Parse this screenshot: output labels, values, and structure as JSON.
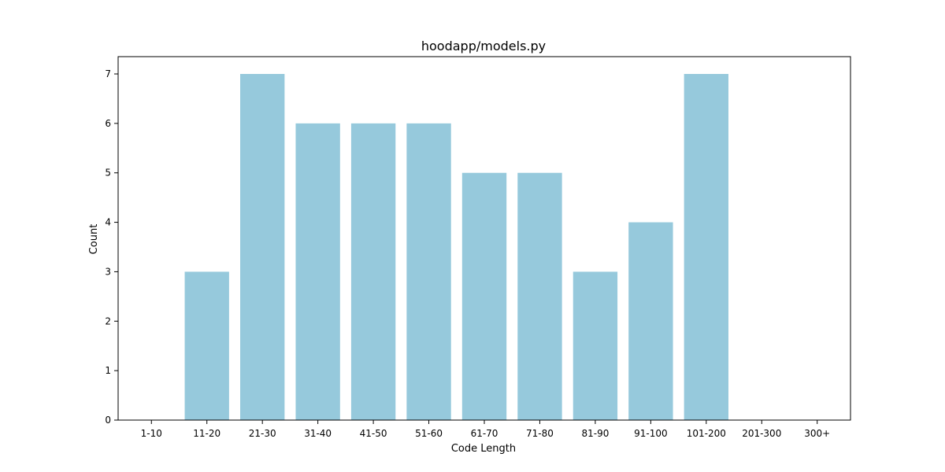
{
  "chart_data": {
    "type": "bar",
    "title": "hoodapp/models.py",
    "xlabel": "Code Length",
    "ylabel": "Count",
    "categories": [
      "1-10",
      "11-20",
      "21-30",
      "31-40",
      "41-50",
      "51-60",
      "61-70",
      "71-80",
      "81-90",
      "91-100",
      "101-200",
      "201-300",
      "300+"
    ],
    "values": [
      0,
      3,
      7,
      6,
      6,
      6,
      5,
      5,
      3,
      4,
      7,
      0,
      0
    ],
    "ylim": [
      0,
      7.35
    ],
    "yticks": [
      0,
      1,
      2,
      3,
      4,
      5,
      6,
      7
    ],
    "bar_color": "#96c9dc",
    "grid": false,
    "legend": "none"
  }
}
